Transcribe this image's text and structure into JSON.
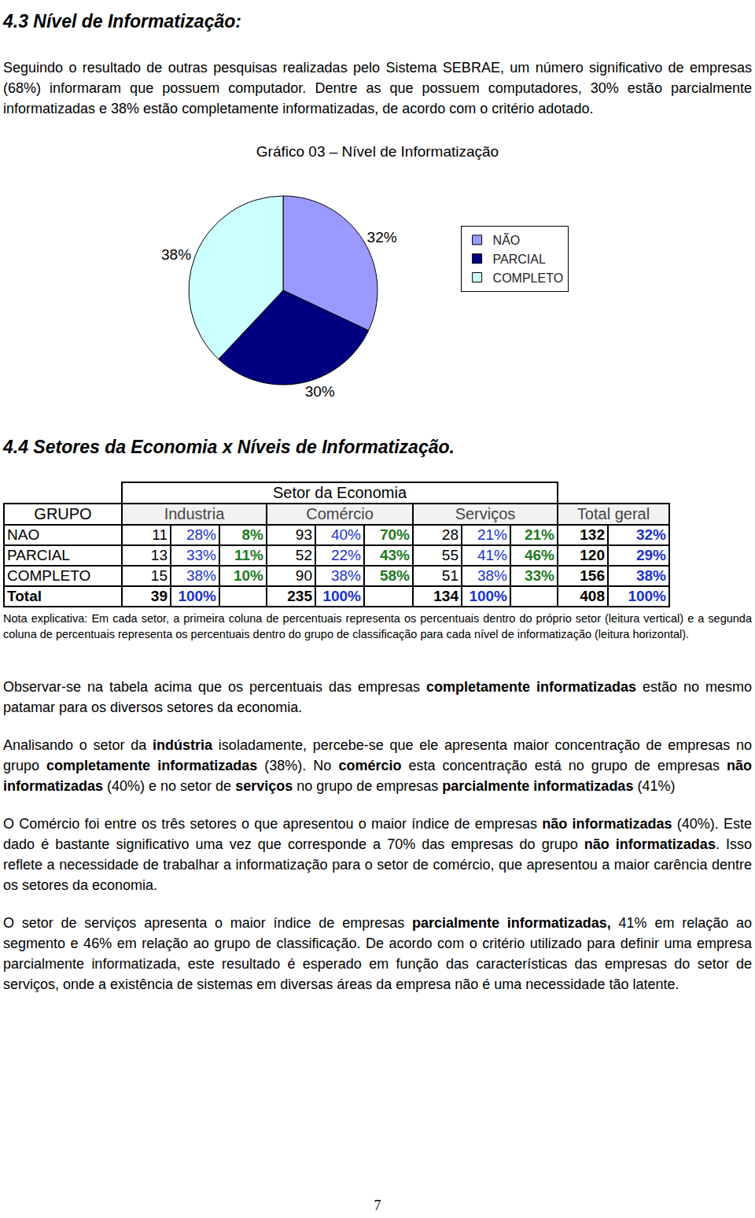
{
  "heading1": "4.3 Nível de Informatização:",
  "paragraph1": [
    {
      "t": "Seguindo o resultado de outras pesquisas realizadas pelo Sistema SEBRAE, um número significativo de empresas (68%) informaram que possuem computador. Dentre as que possuem computadores, 30% estão parcialmente informatizadas e 38% estão completamente informatizadas, de acordo com o critério adotado."
    }
  ],
  "chart_data": {
    "type": "pie",
    "title": "Gráfico 03 – Nível de Informatização",
    "categories": [
      "NÃO",
      "PARCIAL",
      "COMPLETO"
    ],
    "values": [
      32,
      30,
      38
    ],
    "value_labels": [
      "32%",
      "30%",
      "38%"
    ],
    "colors": [
      "#9999ff",
      "#000080",
      "#ccffff"
    ],
    "data_labels": true,
    "legend": "right"
  },
  "heading2": "4.4 Setores da Economia x Níveis de Informatização.",
  "table": {
    "super_header": "Setor da Economia",
    "header": [
      "GRUPO",
      "Industria",
      "Comércio",
      "Serviços",
      "Total geral"
    ],
    "rows": [
      [
        "NAO",
        "11",
        "28%",
        "8%",
        "93",
        "40%",
        "70%",
        "28",
        "21%",
        "21%",
        "132",
        "32%"
      ],
      [
        "PARCIAL",
        "13",
        "33%",
        "11%",
        "52",
        "22%",
        "43%",
        "55",
        "41%",
        "46%",
        "120",
        "29%"
      ],
      [
        "COMPLETO",
        "15",
        "38%",
        "10%",
        "90",
        "38%",
        "58%",
        "51",
        "38%",
        "33%",
        "156",
        "38%"
      ],
      [
        "Total",
        "39",
        "100%",
        null,
        "235",
        "100%",
        null,
        "134",
        "100%",
        null,
        "408",
        "100%"
      ]
    ],
    "note": "Nota explicativa: Em cada setor, a primeira coluna de percentuais representa os percentuais dentro do próprio setor (leitura vertical) e a segunda coluna de percentuais representa os percentuais dentro do grupo de classificação para cada nível de informatização (leitura horizontal)."
  },
  "paragraphs": [
    [
      {
        "t": "Observar-se na tabela acima que os percentuais das empresas "
      },
      {
        "t": "completamente informatizadas",
        "b": true
      },
      {
        "t": " estão no mesmo patamar para os diversos setores da economia."
      }
    ],
    [
      {
        "t": "Analisando o setor da "
      },
      {
        "t": "indústria",
        "b": true
      },
      {
        "t": " isoladamente, percebe-se que ele apresenta maior concentração de empresas no grupo "
      },
      {
        "t": "completamente informatizadas",
        "b": true
      },
      {
        "t": " (38%). No "
      },
      {
        "t": "comércio",
        "b": true
      },
      {
        "t": " esta concentração está no grupo de empresas "
      },
      {
        "t": "não informatizadas",
        "b": true
      },
      {
        "t": " (40%) e no setor de "
      },
      {
        "t": "serviços",
        "b": true
      },
      {
        "t": " no grupo de empresas "
      },
      {
        "t": "parcialmente informatizadas",
        "b": true
      },
      {
        "t": " (41%)"
      }
    ],
    [
      {
        "t": "O Comércio foi entre os três setores o que apresentou o maior índice de empresas "
      },
      {
        "t": "não informatizadas",
        "b": true
      },
      {
        "t": " (40%). Este dado é bastante significativo uma vez que corresponde a 70% das empresas do grupo "
      },
      {
        "t": "não informatizadas",
        "b": true
      },
      {
        "t": ". Isso reflete a necessidade de trabalhar a informatização para o setor de comércio, que apresentou a maior carência dentre os setores da economia."
      }
    ],
    [
      {
        "t": "O setor de serviços apresenta o maior índice de empresas "
      },
      {
        "t": "parcialmente informatizadas,",
        "b": true
      },
      {
        "t": " 41% em relação ao segmento e 46% em relação ao grupo de classificação. De acordo com o critério utilizado para definir uma empresa parcialmente informatizada, este resultado é esperado em função das características das empresas do setor de serviços, onde a existência de sistemas em diversas áreas da empresa não é uma necessidade tão latente."
      }
    ]
  ],
  "page_number": "7"
}
